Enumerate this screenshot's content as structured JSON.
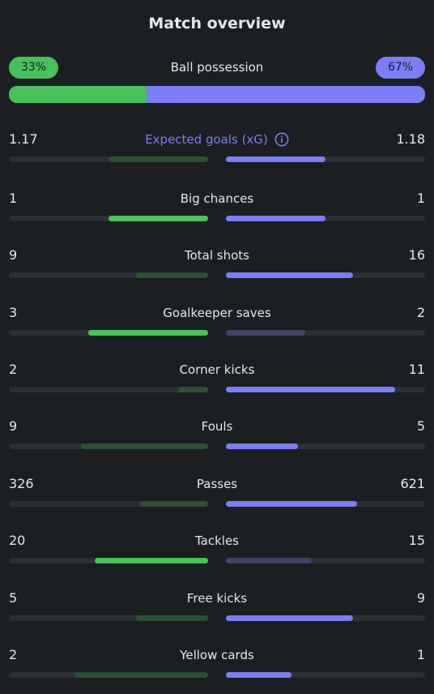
{
  "header": {
    "title": "Match overview"
  },
  "possession": {
    "label": "Ball possession",
    "home": "33%",
    "away": "67%",
    "home_fraction": 0.33,
    "colors": {
      "home": "#46c15c",
      "away": "#7b7ef6"
    }
  },
  "stats": [
    {
      "label": "Expected goals (xG)",
      "home": "1.17",
      "away": "1.18",
      "home_fill": 0.5,
      "away_fill": 0.5,
      "home_strong": false,
      "away_strong": true,
      "info_icon": "info-icon",
      "highlight": true
    },
    {
      "label": "Big chances",
      "home": "1",
      "away": "1",
      "home_fill": 0.5,
      "away_fill": 0.5,
      "home_strong": true,
      "away_strong": true
    },
    {
      "label": "Total shots",
      "home": "9",
      "away": "16",
      "home_fill": 0.36,
      "away_fill": 0.64,
      "home_strong": false,
      "away_strong": true
    },
    {
      "label": "Goalkeeper saves",
      "home": "3",
      "away": "2",
      "home_fill": 0.6,
      "away_fill": 0.4,
      "home_strong": true,
      "away_strong": false
    },
    {
      "label": "Corner kicks",
      "home": "2",
      "away": "11",
      "home_fill": 0.15,
      "away_fill": 0.85,
      "home_strong": false,
      "away_strong": true
    },
    {
      "label": "Fouls",
      "home": "9",
      "away": "5",
      "home_fill": 0.64,
      "away_fill": 0.36,
      "home_strong": false,
      "away_strong": true
    },
    {
      "label": "Passes",
      "home": "326",
      "away": "621",
      "home_fill": 0.34,
      "away_fill": 0.66,
      "home_strong": false,
      "away_strong": true
    },
    {
      "label": "Tackles",
      "home": "20",
      "away": "15",
      "home_fill": 0.57,
      "away_fill": 0.43,
      "home_strong": true,
      "away_strong": false
    },
    {
      "label": "Free kicks",
      "home": "5",
      "away": "9",
      "home_fill": 0.36,
      "away_fill": 0.64,
      "home_strong": false,
      "away_strong": true
    },
    {
      "label": "Yellow cards",
      "home": "2",
      "away": "1",
      "home_fill": 0.67,
      "away_fill": 0.33,
      "home_strong": false,
      "away_strong": true
    }
  ]
}
